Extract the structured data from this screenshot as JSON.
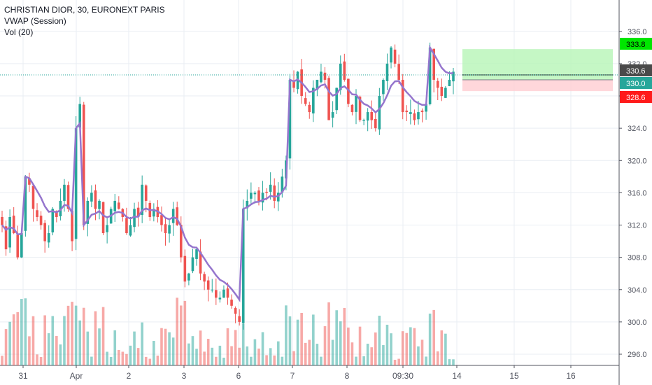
{
  "legend": {
    "title": "CHRISTIAN DIOR, 30, EURONEXT PARIS",
    "vwap": "VWAP (Session)",
    "vol": "Vol (20)"
  },
  "colors": {
    "up": "#26a69a",
    "down": "#ef5350",
    "vwap": "#9575cd",
    "grid": "#e9eef3",
    "axis_text": "#50535e",
    "profit_zone": "#b7f5b7",
    "loss_zone": "#ffcdd2"
  },
  "chart_data": {
    "type": "candlestick",
    "title": "CHRISTIAN DIOR, 30, EURONEXT PARIS",
    "ylim": [
      294.8,
      339.0
    ],
    "y_ticks": [
      "296.0",
      "300.0",
      "304.0",
      "308.0",
      "312.0",
      "316.0",
      "320.0",
      "324.0",
      "328.0",
      "332.0",
      "336.0"
    ],
    "x_ticks": [
      "31",
      "Apr",
      "2",
      "3",
      "6",
      "7",
      "8",
      "09:30",
      "14",
      "15",
      "16"
    ],
    "price_labels": [
      {
        "value": 333.8,
        "text": "333.8",
        "kind": "target"
      },
      {
        "value": 330.6,
        "text": "330.6",
        "kind": "last"
      },
      {
        "value": 330.0,
        "text": "330.0",
        "kind": "entry"
      },
      {
        "value": 328.6,
        "text": "328.6",
        "kind": "stop"
      }
    ],
    "position": {
      "entry": 330.0,
      "target": 333.8,
      "stop": 328.6
    },
    "last_price": 330.6,
    "closes": [
      312,
      309,
      313,
      311,
      308,
      311,
      318,
      317,
      314,
      313,
      312,
      310,
      311,
      314,
      313,
      315,
      317,
      314,
      310,
      324,
      327,
      312,
      315,
      316,
      314,
      315,
      311,
      312,
      314,
      315,
      314,
      313,
      311,
      312,
      314,
      313,
      317,
      315,
      313,
      314,
      313,
      312,
      311,
      312,
      314,
      312,
      308,
      305,
      306,
      308,
      309,
      306,
      305,
      304,
      304,
      303,
      303,
      304,
      303,
      302,
      301,
      300,
      314,
      315,
      316,
      316,
      315,
      316,
      316,
      317,
      315,
      316,
      318,
      320,
      330,
      329,
      331,
      328,
      327,
      326,
      329,
      330,
      331,
      330,
      325,
      326,
      329,
      332,
      330,
      327,
      326,
      328,
      325,
      325,
      326,
      325,
      324,
      328,
      330,
      332,
      334,
      332,
      330,
      326,
      326,
      326,
      325,
      326,
      326,
      327,
      334,
      330,
      329,
      328,
      329,
      330,
      331
    ]
  }
}
